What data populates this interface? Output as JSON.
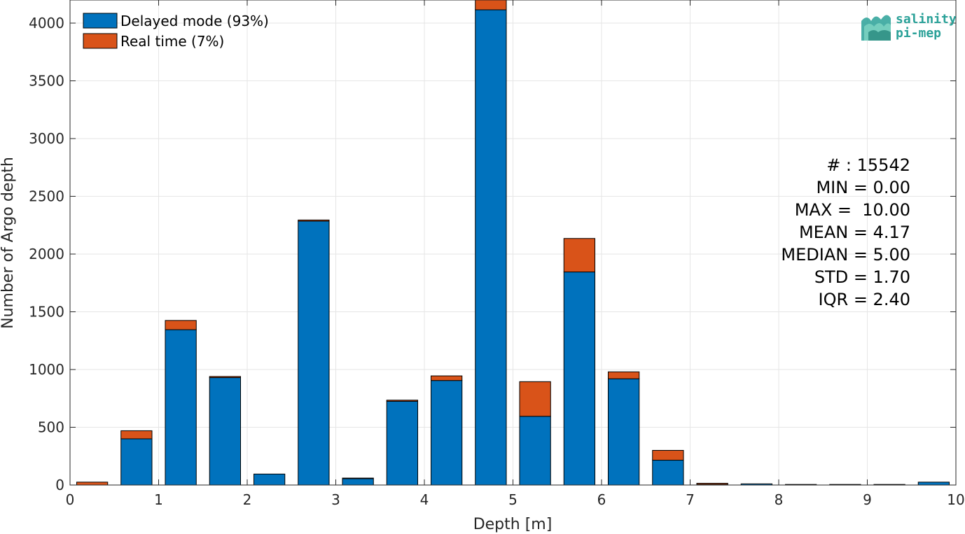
{
  "chart_data": {
    "type": "bar",
    "stacked": true,
    "xlabel": "Depth [m]",
    "ylabel": "Number of Argo depth",
    "xlim": [
      0,
      10
    ],
    "ylim": [
      0,
      4200
    ],
    "xticks": [
      0,
      1,
      2,
      3,
      4,
      5,
      6,
      7,
      8,
      9,
      10
    ],
    "yticks": [
      0,
      500,
      1000,
      1500,
      2000,
      2500,
      3000,
      3500,
      4000
    ],
    "grid": true,
    "legend_position": "top-left",
    "bin_width": 0.5,
    "bin_centers": [
      0.25,
      0.75,
      1.25,
      1.75,
      2.25,
      2.75,
      3.25,
      3.75,
      4.25,
      4.75,
      5.25,
      5.75,
      6.25,
      6.75,
      7.25,
      7.75,
      8.25,
      8.75,
      9.25,
      9.75
    ],
    "series": [
      {
        "name": "Delayed mode (93%)",
        "color": "#0072bd",
        "values": [
          0,
          400,
          1345,
          930,
          95,
          2285,
          55,
          725,
          905,
          4115,
          595,
          1845,
          920,
          215,
          5,
          10,
          5,
          5,
          5,
          25
        ]
      },
      {
        "name": "Real time (7%)",
        "color": "#d95319",
        "values": [
          25,
          70,
          80,
          10,
          0,
          10,
          5,
          10,
          40,
          85,
          300,
          290,
          60,
          85,
          10,
          0,
          0,
          0,
          0,
          0
        ]
      }
    ]
  },
  "stats": {
    "count": "# : 15542",
    "min": "MIN = 0.00",
    "max": "MAX =  10.00",
    "mean": "MEAN = 4.17",
    "median": "MEDIAN = 5.00",
    "std": "STD = 1.70",
    "iqr": "IQR = 2.40"
  },
  "logo": {
    "line1": "salinity",
    "line2": "pi-mep",
    "color": "#2aa198"
  }
}
